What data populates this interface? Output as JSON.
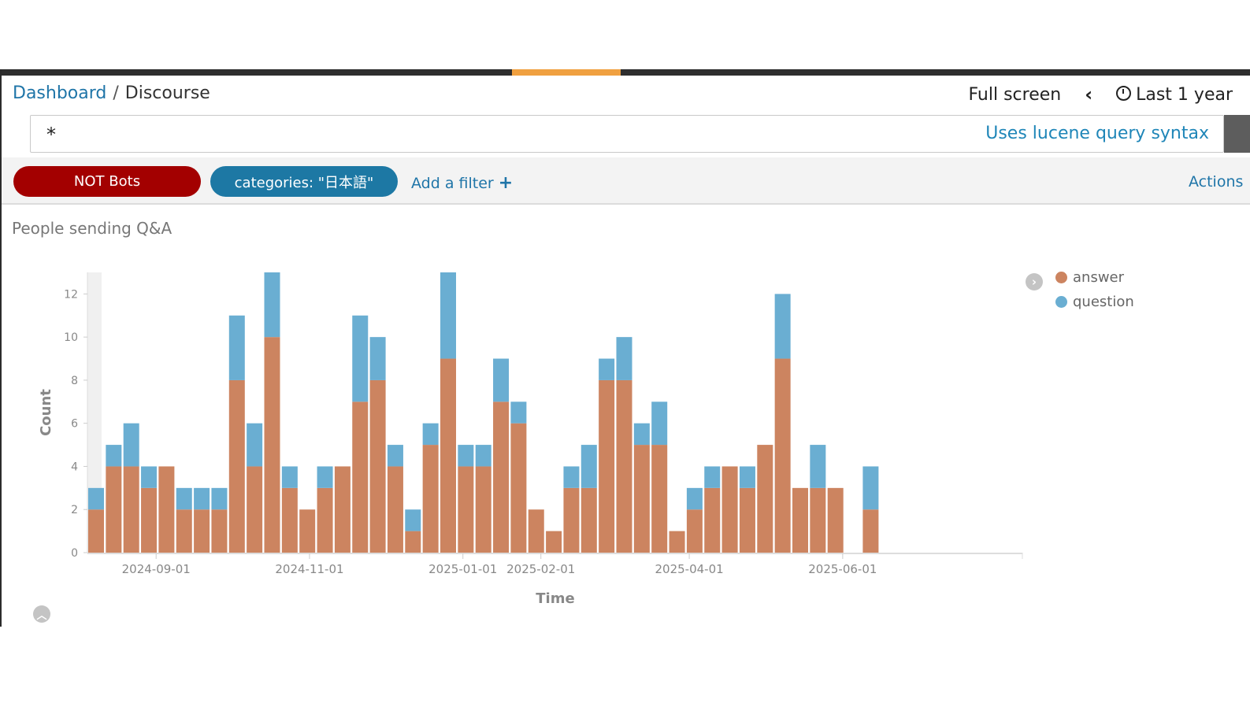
{
  "breadcrumb": {
    "root": "Dashboard",
    "separator": "/",
    "current": "Discourse"
  },
  "header": {
    "full_screen": "Full screen",
    "time_range": "Last 1 year"
  },
  "query": {
    "value": "*",
    "hint": "Uses lucene query syntax"
  },
  "filters": [
    {
      "label": "NOT Bots",
      "color": "#a30000"
    },
    {
      "label": "categories: \"日本語\"",
      "color": "#1d78a4"
    }
  ],
  "add_filter": "Add a filter",
  "actions": "Actions",
  "panel": {
    "title": "People sending Q&A"
  },
  "legend": [
    {
      "name": "answer",
      "color": "#cc8460"
    },
    {
      "name": "question",
      "color": "#6aaed2"
    }
  ],
  "chart_data": {
    "type": "bar",
    "stacked": true,
    "title": "People sending Q&A",
    "xlabel": "Time",
    "ylabel": "Count",
    "ylim": [
      0,
      13
    ],
    "yticks": [
      0,
      2,
      4,
      6,
      8,
      10,
      12
    ],
    "xtick_labels": [
      "2024-09-01",
      "2024-11-01",
      "2025-01-01",
      "2025-02-01",
      "2025-04-01",
      "2025-06-01"
    ],
    "x": [
      "2024-08-05",
      "2024-08-12",
      "2024-08-19",
      "2024-08-26",
      "2024-09-02",
      "2024-09-09",
      "2024-09-16",
      "2024-09-23",
      "2024-09-30",
      "2024-10-07",
      "2024-10-14",
      "2024-10-21",
      "2024-10-28",
      "2024-11-04",
      "2024-11-11",
      "2024-11-18",
      "2024-11-25",
      "2024-12-02",
      "2024-12-09",
      "2024-12-16",
      "2024-12-23",
      "2024-12-30",
      "2025-01-06",
      "2025-01-13",
      "2025-01-20",
      "2025-01-27",
      "2025-02-03",
      "2025-02-10",
      "2025-02-17",
      "2025-02-24",
      "2025-03-03",
      "2025-03-10",
      "2025-03-17",
      "2025-03-24",
      "2025-03-31",
      "2025-04-07",
      "2025-04-14",
      "2025-04-21",
      "2025-04-28",
      "2025-05-05",
      "2025-05-12",
      "2025-05-19",
      "2025-05-26",
      "2025-06-02",
      "2025-06-09",
      "2025-06-16"
    ],
    "series": [
      {
        "name": "answer",
        "values": [
          2,
          4,
          4,
          3,
          4,
          2,
          2,
          2,
          8,
          4,
          10,
          3,
          2,
          3,
          4,
          7,
          8,
          4,
          1,
          5,
          9,
          4,
          4,
          7,
          6,
          2,
          1,
          3,
          3,
          8,
          8,
          5,
          5,
          1,
          2,
          3,
          4,
          3,
          5,
          9,
          3,
          3,
          3,
          0,
          2,
          null
        ]
      },
      {
        "name": "question",
        "values": [
          1,
          1,
          2,
          1,
          0,
          1,
          1,
          1,
          3,
          2,
          3,
          1,
          0,
          1,
          0,
          4,
          2,
          1,
          1,
          1,
          4,
          1,
          1,
          2,
          1,
          0,
          0,
          1,
          2,
          1,
          2,
          1,
          2,
          0,
          1,
          1,
          0,
          1,
          0,
          3,
          0,
          2,
          0,
          0,
          2,
          null
        ]
      }
    ]
  }
}
